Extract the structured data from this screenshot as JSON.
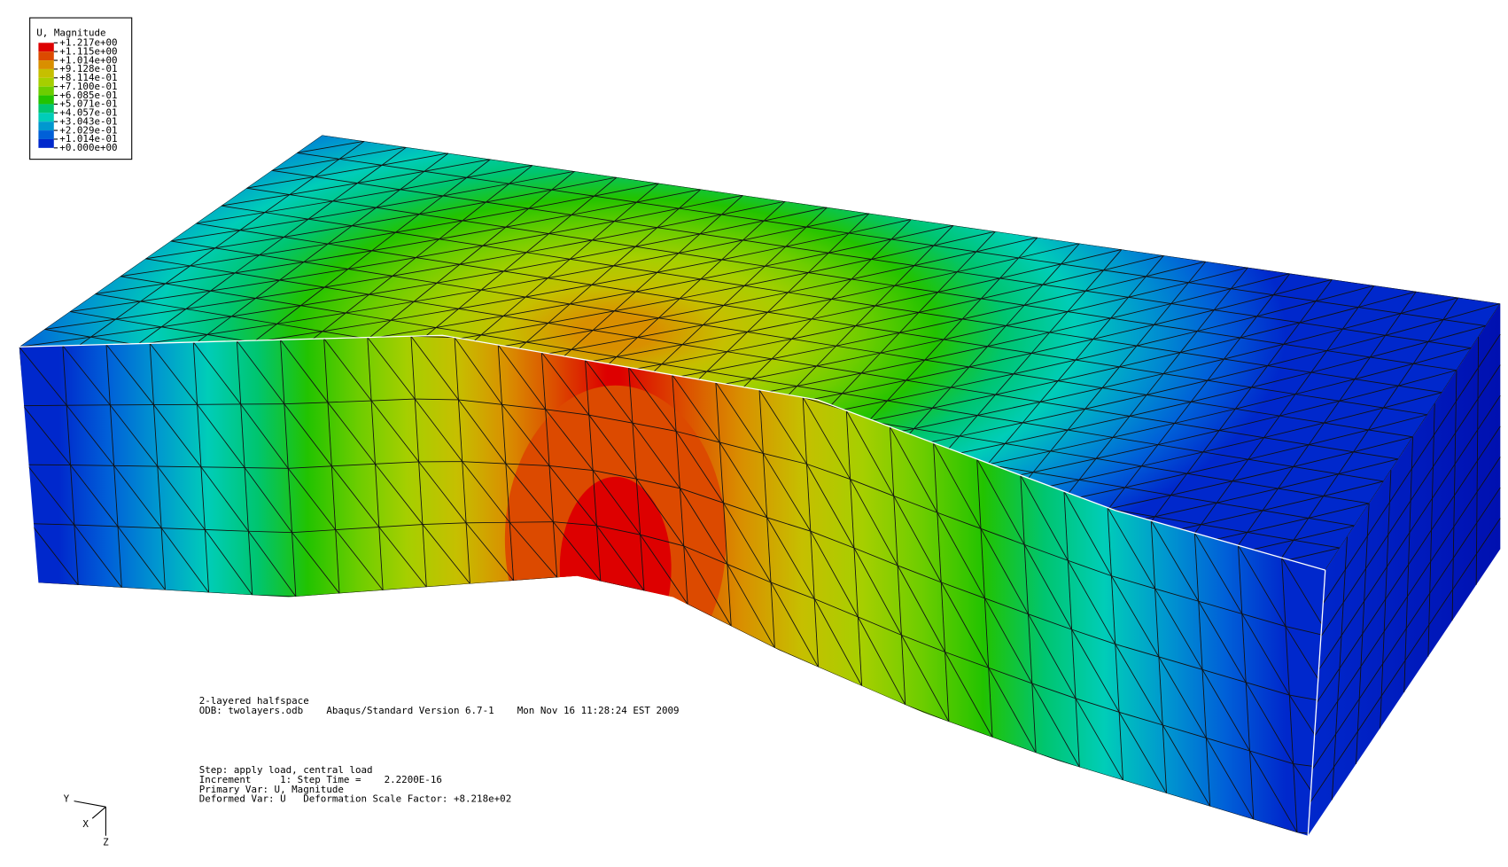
{
  "legend": {
    "title": "U, Magnitude",
    "labels": [
      "+1.217e+00",
      "+1.115e+00",
      "+1.014e+00",
      "+9.128e-01",
      "+8.114e-01",
      "+7.100e-01",
      "+6.085e-01",
      "+5.071e-01",
      "+4.057e-01",
      "+3.043e-01",
      "+2.029e-01",
      "+1.014e-01",
      "+0.000e+00"
    ],
    "colors": [
      "#dd0000",
      "#dc4a00",
      "#d98f00",
      "#c6bf00",
      "#a6cf00",
      "#6ccd00",
      "#22c300",
      "#00c56f",
      "#00cdb8",
      "#0098cf",
      "#0060d8",
      "#0028cc"
    ]
  },
  "info": {
    "lines": [
      "2-layered halfspace",
      "ODB: twolayers.odb    Abaqus/Standard Version 6.7-1    Mon Nov 16 11:28:24 EST 2009"
    ]
  },
  "status": {
    "lines": [
      "Step: apply load, central load",
      "Increment     1: Step Time =    2.2200E-16",
      "Primary Var: U, Magnitude",
      "Deformed Var: U   Deformation Scale Factor: +8.218e+02"
    ]
  },
  "triad": {
    "y": "Y",
    "x": "X",
    "z": "Z"
  }
}
